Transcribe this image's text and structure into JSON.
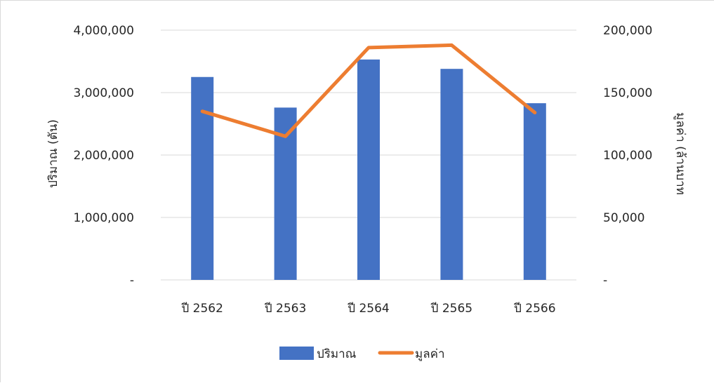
{
  "chart_data": {
    "type": "bar",
    "categories": [
      "ปี 2562",
      "ปี 2563",
      "ปี 2564",
      "ปี 2565",
      "ปี 2566"
    ],
    "series": [
      {
        "name": "ปริมาณ",
        "type": "bar",
        "axis": "left",
        "color": "#4472C4",
        "values": [
          3250000,
          2760000,
          3530000,
          3380000,
          2830000
        ]
      },
      {
        "name": "มูลค่า",
        "type": "line",
        "axis": "right",
        "color": "#ED7D31",
        "values": [
          135000,
          115000,
          186000,
          188000,
          134000
        ]
      }
    ],
    "ylabel": "ปริมาณ (ตัน)",
    "y2label": "มูลค่า (ล้านบาท",
    "ylim": [
      0,
      4000000
    ],
    "y2lim": [
      0,
      200000
    ],
    "yticks": [
      "-",
      "1,000,000",
      "2,000,000",
      "3,000,000",
      "4,000,000"
    ],
    "y2ticks": [
      "-",
      "50,000",
      "100,000",
      "150,000",
      "200,000"
    ],
    "grid": true,
    "legend_position": "bottom"
  }
}
